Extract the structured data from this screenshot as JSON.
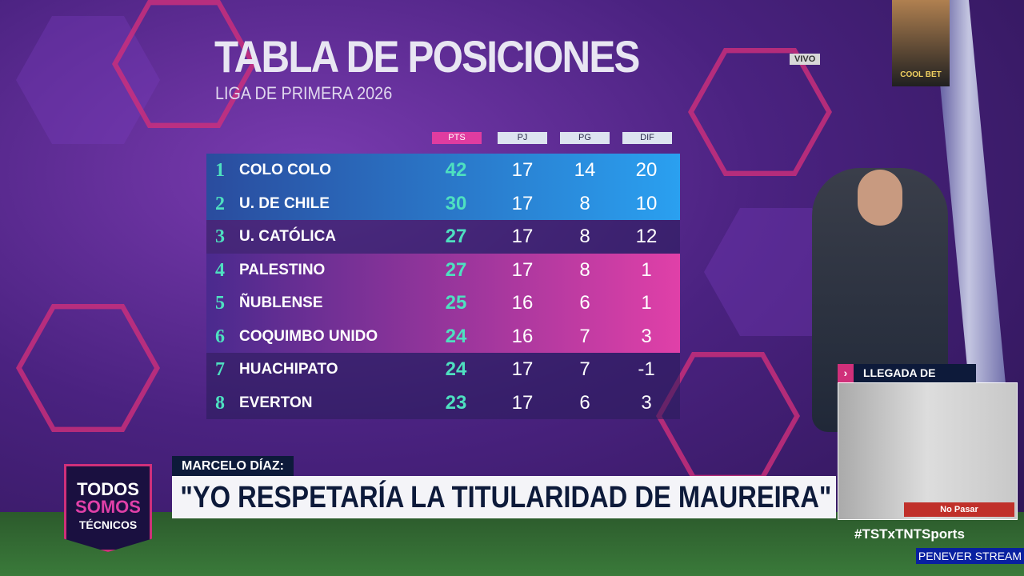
{
  "header": {
    "title": "TABLA DE POSICIONES",
    "subtitle": "LIGA DE PRIMERA 2026"
  },
  "table": {
    "columns": [
      "PTS",
      "PJ",
      "PG",
      "DIF"
    ],
    "rows": [
      {
        "rank": 1,
        "team": "COLO COLO",
        "values": [
          42,
          17,
          14,
          20
        ]
      },
      {
        "rank": 2,
        "team": "U. DE CHILE",
        "values": [
          30,
          17,
          8,
          10
        ]
      },
      {
        "rank": 3,
        "team": "U. CATÓLICA",
        "values": [
          27,
          17,
          8,
          12
        ]
      },
      {
        "rank": 4,
        "team": "PALESTINO",
        "values": [
          27,
          17,
          8,
          1
        ]
      },
      {
        "rank": 5,
        "team": "ÑUBLENSE",
        "values": [
          25,
          16,
          6,
          1
        ]
      },
      {
        "rank": 6,
        "team": "COQUIMBO UNIDO",
        "values": [
          24,
          16,
          7,
          3
        ]
      },
      {
        "rank": 7,
        "team": "HUACHIPATO",
        "values": [
          24,
          17,
          7,
          -1
        ]
      },
      {
        "rank": 8,
        "team": "EVERTON",
        "values": [
          23,
          17,
          6,
          3
        ]
      }
    ]
  },
  "live_badge": "VIVO",
  "sponsor": "COOL BET",
  "lower_third": {
    "speaker": "MARCELO DÍAZ:",
    "quote": "\"YO RESPETARÍA LA TITULARIDAD DE MAUREIRA\""
  },
  "logo": {
    "line1": "TODOS",
    "line2": "SOMOS",
    "line3": "TÉCNICOS"
  },
  "inset": {
    "title": "LLEGADA DE VOZINHA",
    "sign": "No Pasar"
  },
  "hashtag": "#TSTxTNTSports",
  "watermark": "PENEVER STREAM"
}
